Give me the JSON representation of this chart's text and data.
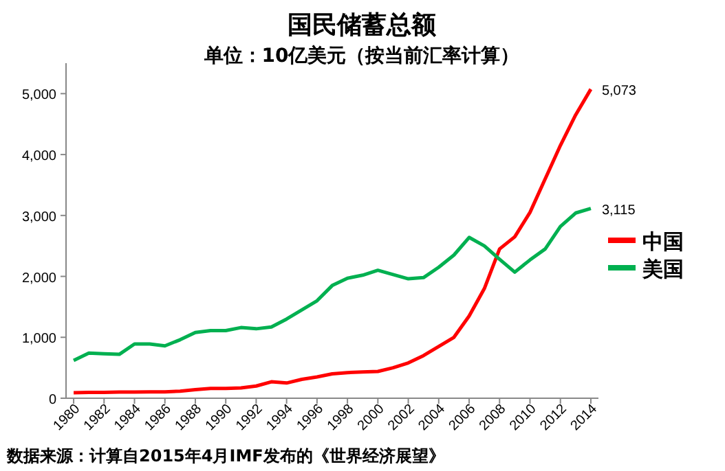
{
  "chart_data": {
    "type": "line",
    "title": "国民储蓄总额",
    "subtitle": "单位：10亿美元（按当前汇率计算）",
    "x": [
      1980,
      1981,
      1982,
      1983,
      1984,
      1985,
      1986,
      1987,
      1988,
      1989,
      1990,
      1991,
      1992,
      1993,
      1994,
      1995,
      1996,
      1997,
      1998,
      1999,
      2000,
      2001,
      2002,
      2003,
      2004,
      2005,
      2006,
      2007,
      2008,
      2009,
      2010,
      2011,
      2012,
      2013,
      2014
    ],
    "series": [
      {
        "name": "中国",
        "color": "#ff0000",
        "values": [
          90,
          95,
          95,
          100,
          100,
          105,
          105,
          115,
          140,
          160,
          160,
          170,
          200,
          270,
          250,
          310,
          350,
          400,
          420,
          430,
          440,
          500,
          580,
          700,
          850,
          1000,
          1350,
          1800,
          2450,
          2650,
          3050,
          3600,
          4150,
          4650,
          5073
        ],
        "value_labels": [
          null,
          null,
          null,
          null,
          null,
          null,
          null,
          null,
          null,
          null,
          null,
          null,
          null,
          null,
          null,
          null,
          null,
          null,
          null,
          null,
          null,
          null,
          null,
          null,
          null,
          null,
          null,
          null,
          null,
          null,
          null,
          null,
          null,
          null,
          "5,073"
        ]
      },
      {
        "name": "美国",
        "color": "#00b050",
        "values": [
          620,
          740,
          730,
          720,
          890,
          890,
          860,
          960,
          1080,
          1110,
          1110,
          1160,
          1140,
          1170,
          1300,
          1450,
          1600,
          1850,
          1970,
          2020,
          2100,
          2030,
          1960,
          1980,
          2150,
          2350,
          2640,
          2500,
          2280,
          2070,
          2270,
          2450,
          2820,
          3040,
          3115
        ],
        "value_labels": [
          null,
          null,
          null,
          null,
          null,
          null,
          null,
          null,
          null,
          null,
          null,
          null,
          null,
          null,
          null,
          null,
          null,
          null,
          null,
          null,
          null,
          null,
          null,
          null,
          null,
          null,
          null,
          null,
          null,
          null,
          null,
          null,
          null,
          null,
          "3,115"
        ]
      }
    ],
    "xlim": [
      1979.5,
      2014.5
    ],
    "xticks": [
      1980,
      1982,
      1984,
      1986,
      1988,
      1990,
      1992,
      1994,
      1996,
      1998,
      2000,
      2002,
      2004,
      2006,
      2008,
      2010,
      2012,
      2014
    ],
    "ylim": [
      0,
      5500
    ],
    "yticks": [
      {
        "value": 0,
        "label": "0"
      },
      {
        "value": 1000,
        "label": "1,000"
      },
      {
        "value": 2000,
        "label": "2,000"
      },
      {
        "value": 3000,
        "label": "3,000"
      },
      {
        "value": 4000,
        "label": "4,000"
      },
      {
        "value": 5000,
        "label": "5,000"
      }
    ],
    "grid": false,
    "legend": "right",
    "marker": "none",
    "line_style": "solid",
    "annotations": [
      "数据来源：计算自2015年4月IMF发布的《世界经济展望》"
    ]
  }
}
